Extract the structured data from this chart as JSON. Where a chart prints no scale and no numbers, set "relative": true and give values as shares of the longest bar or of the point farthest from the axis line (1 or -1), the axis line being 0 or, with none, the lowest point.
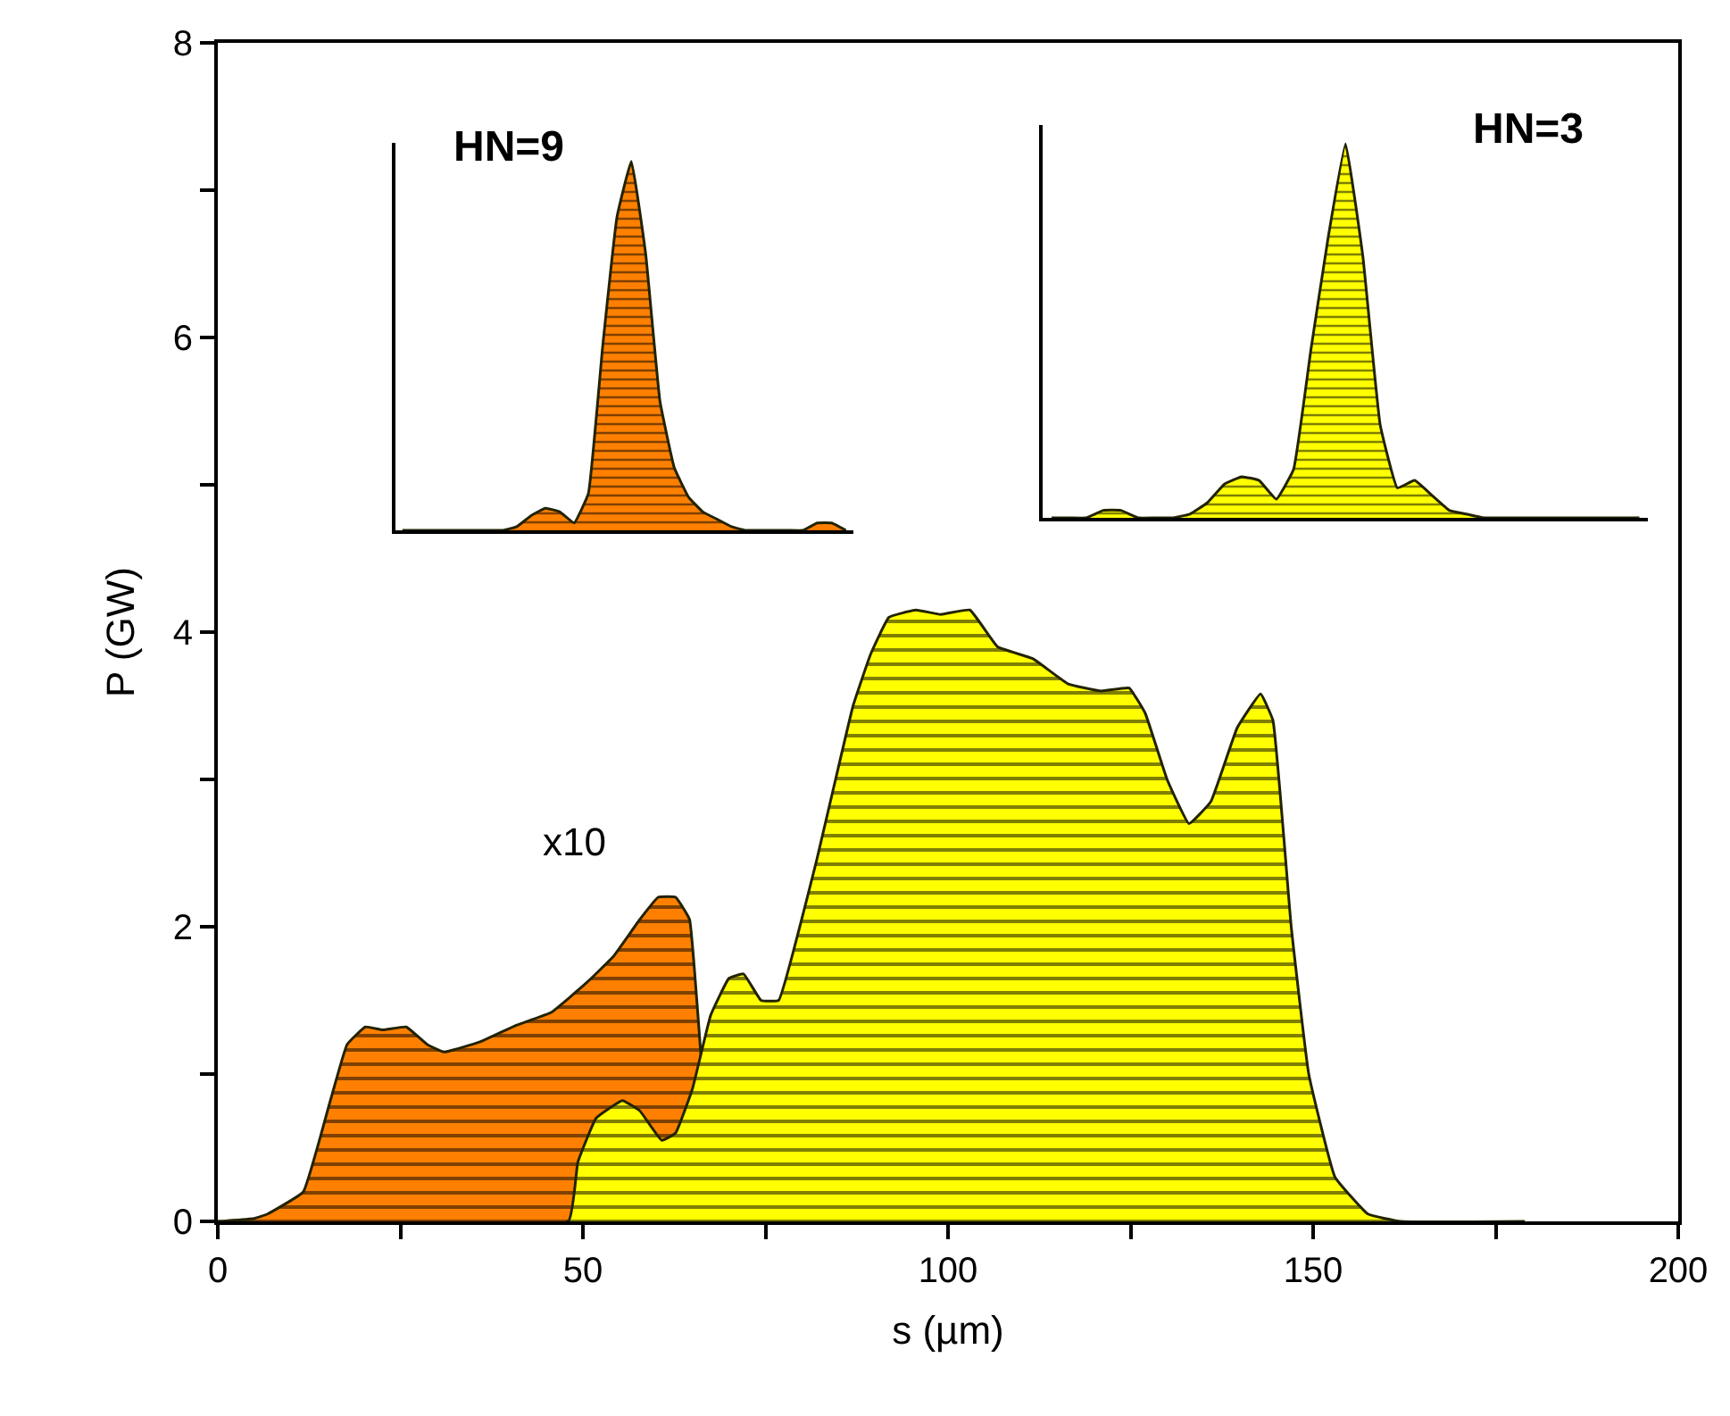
{
  "chart_data": [
    {
      "type": "area",
      "xlabel": "s (µm)",
      "ylabel": "P (GW)",
      "xlim": [
        0,
        200
      ],
      "ylim": [
        0,
        8
      ],
      "xticks": [
        0,
        {
          "value": 25,
          "label": null
        },
        50,
        {
          "value": 75,
          "label": null
        },
        100,
        {
          "value": 125,
          "label": null
        },
        150,
        {
          "value": 175,
          "label": null
        },
        200
      ],
      "yticks": [
        0,
        {
          "value": 1,
          "label": null
        },
        2,
        {
          "value": 3,
          "label": null
        },
        4,
        {
          "value": 5,
          "label": null
        },
        6,
        {
          "value": 7,
          "label": null
        },
        8
      ],
      "annotations": [
        "x10"
      ],
      "series": [
        {
          "color": "#ff8000",
          "x": [
            0,
            5,
            6.8,
            11.7,
            15.3,
            17.7,
            20.2,
            22.6,
            25.8,
            28.7,
            31,
            36,
            40.8,
            45.7,
            50.5,
            54.2,
            57.8,
            60.3,
            62.7,
            64.6,
            65.6,
            67,
            69
          ],
          "values": [
            0,
            0.02,
            0.05,
            0.2,
            0.8,
            1.2,
            1.32,
            1.3,
            1.32,
            1.2,
            1.15,
            1.22,
            1.33,
            1.42,
            1.62,
            1.8,
            2.05,
            2.2,
            2.2,
            2.05,
            1.5,
            0.6,
            0
          ]
        },
        {
          "color": "#ffff00",
          "x": [
            0,
            48,
            49.3,
            51.8,
            55.4,
            57.8,
            60.8,
            62.7,
            65,
            67.5,
            70,
            72,
            74.4,
            76.8,
            79.7,
            82,
            84.6,
            87,
            89.4,
            91.9,
            95.6,
            99,
            103,
            106.8,
            111.6,
            116.4,
            121,
            124.8,
            127,
            130,
            133,
            136,
            139.6,
            142.8,
            144.5,
            147,
            149.4,
            153,
            157.5,
            162,
            179
          ],
          "values": [
            0,
            0,
            0.4,
            0.7,
            0.82,
            0.75,
            0.55,
            0.6,
            0.9,
            1.4,
            1.65,
            1.68,
            1.5,
            1.5,
            2.0,
            2.45,
            3.0,
            3.5,
            3.85,
            4.1,
            4.15,
            4.12,
            4.15,
            3.9,
            3.82,
            3.65,
            3.6,
            3.62,
            3.45,
            3.0,
            2.7,
            2.85,
            3.35,
            3.58,
            3.4,
            2.0,
            1.0,
            0.3,
            0.05,
            0,
            0
          ]
        }
      ]
    },
    {
      "type": "area",
      "title": "HN=9",
      "relative": true,
      "categories": [
        null,
        null,
        null,
        null,
        null,
        null,
        null,
        null,
        null,
        null,
        null,
        null,
        null,
        null,
        null,
        null,
        null,
        null,
        null,
        null,
        null,
        null,
        null,
        null,
        null,
        null,
        null,
        null,
        null,
        null,
        null,
        null
      ],
      "series": [
        {
          "color": "#ff8000",
          "values": [
            0,
            0,
            0,
            0,
            0,
            0,
            0,
            0,
            0.01,
            0.04,
            0.06,
            0.05,
            0.02,
            0.1,
            0.5,
            0.85,
            1,
            0.75,
            0.35,
            0.17,
            0.09,
            0.05,
            0.03,
            0.01,
            0,
            0,
            0,
            0,
            0,
            0.02,
            0.02,
            0
          ]
        }
      ]
    },
    {
      "type": "area",
      "title": "HN=3",
      "relative": true,
      "categories": [
        null,
        null,
        null,
        null,
        null,
        null,
        null,
        null,
        null,
        null,
        null,
        null,
        null,
        null,
        null,
        null,
        null,
        null,
        null,
        null,
        null,
        null,
        null,
        null,
        null,
        null,
        null,
        null,
        null,
        null,
        null,
        null,
        null,
        null,
        null
      ],
      "series": [
        {
          "color": "#ffff00",
          "values": [
            0,
            0,
            0,
            0.02,
            0.02,
            0,
            0,
            0,
            0.01,
            0.04,
            0.09,
            0.11,
            0.1,
            0.05,
            0.13,
            0.45,
            0.75,
            1,
            0.7,
            0.25,
            0.08,
            0.1,
            0.06,
            0.02,
            0.01,
            0,
            0,
            0,
            0,
            0,
            0,
            0,
            0,
            0,
            0
          ]
        }
      ]
    }
  ]
}
